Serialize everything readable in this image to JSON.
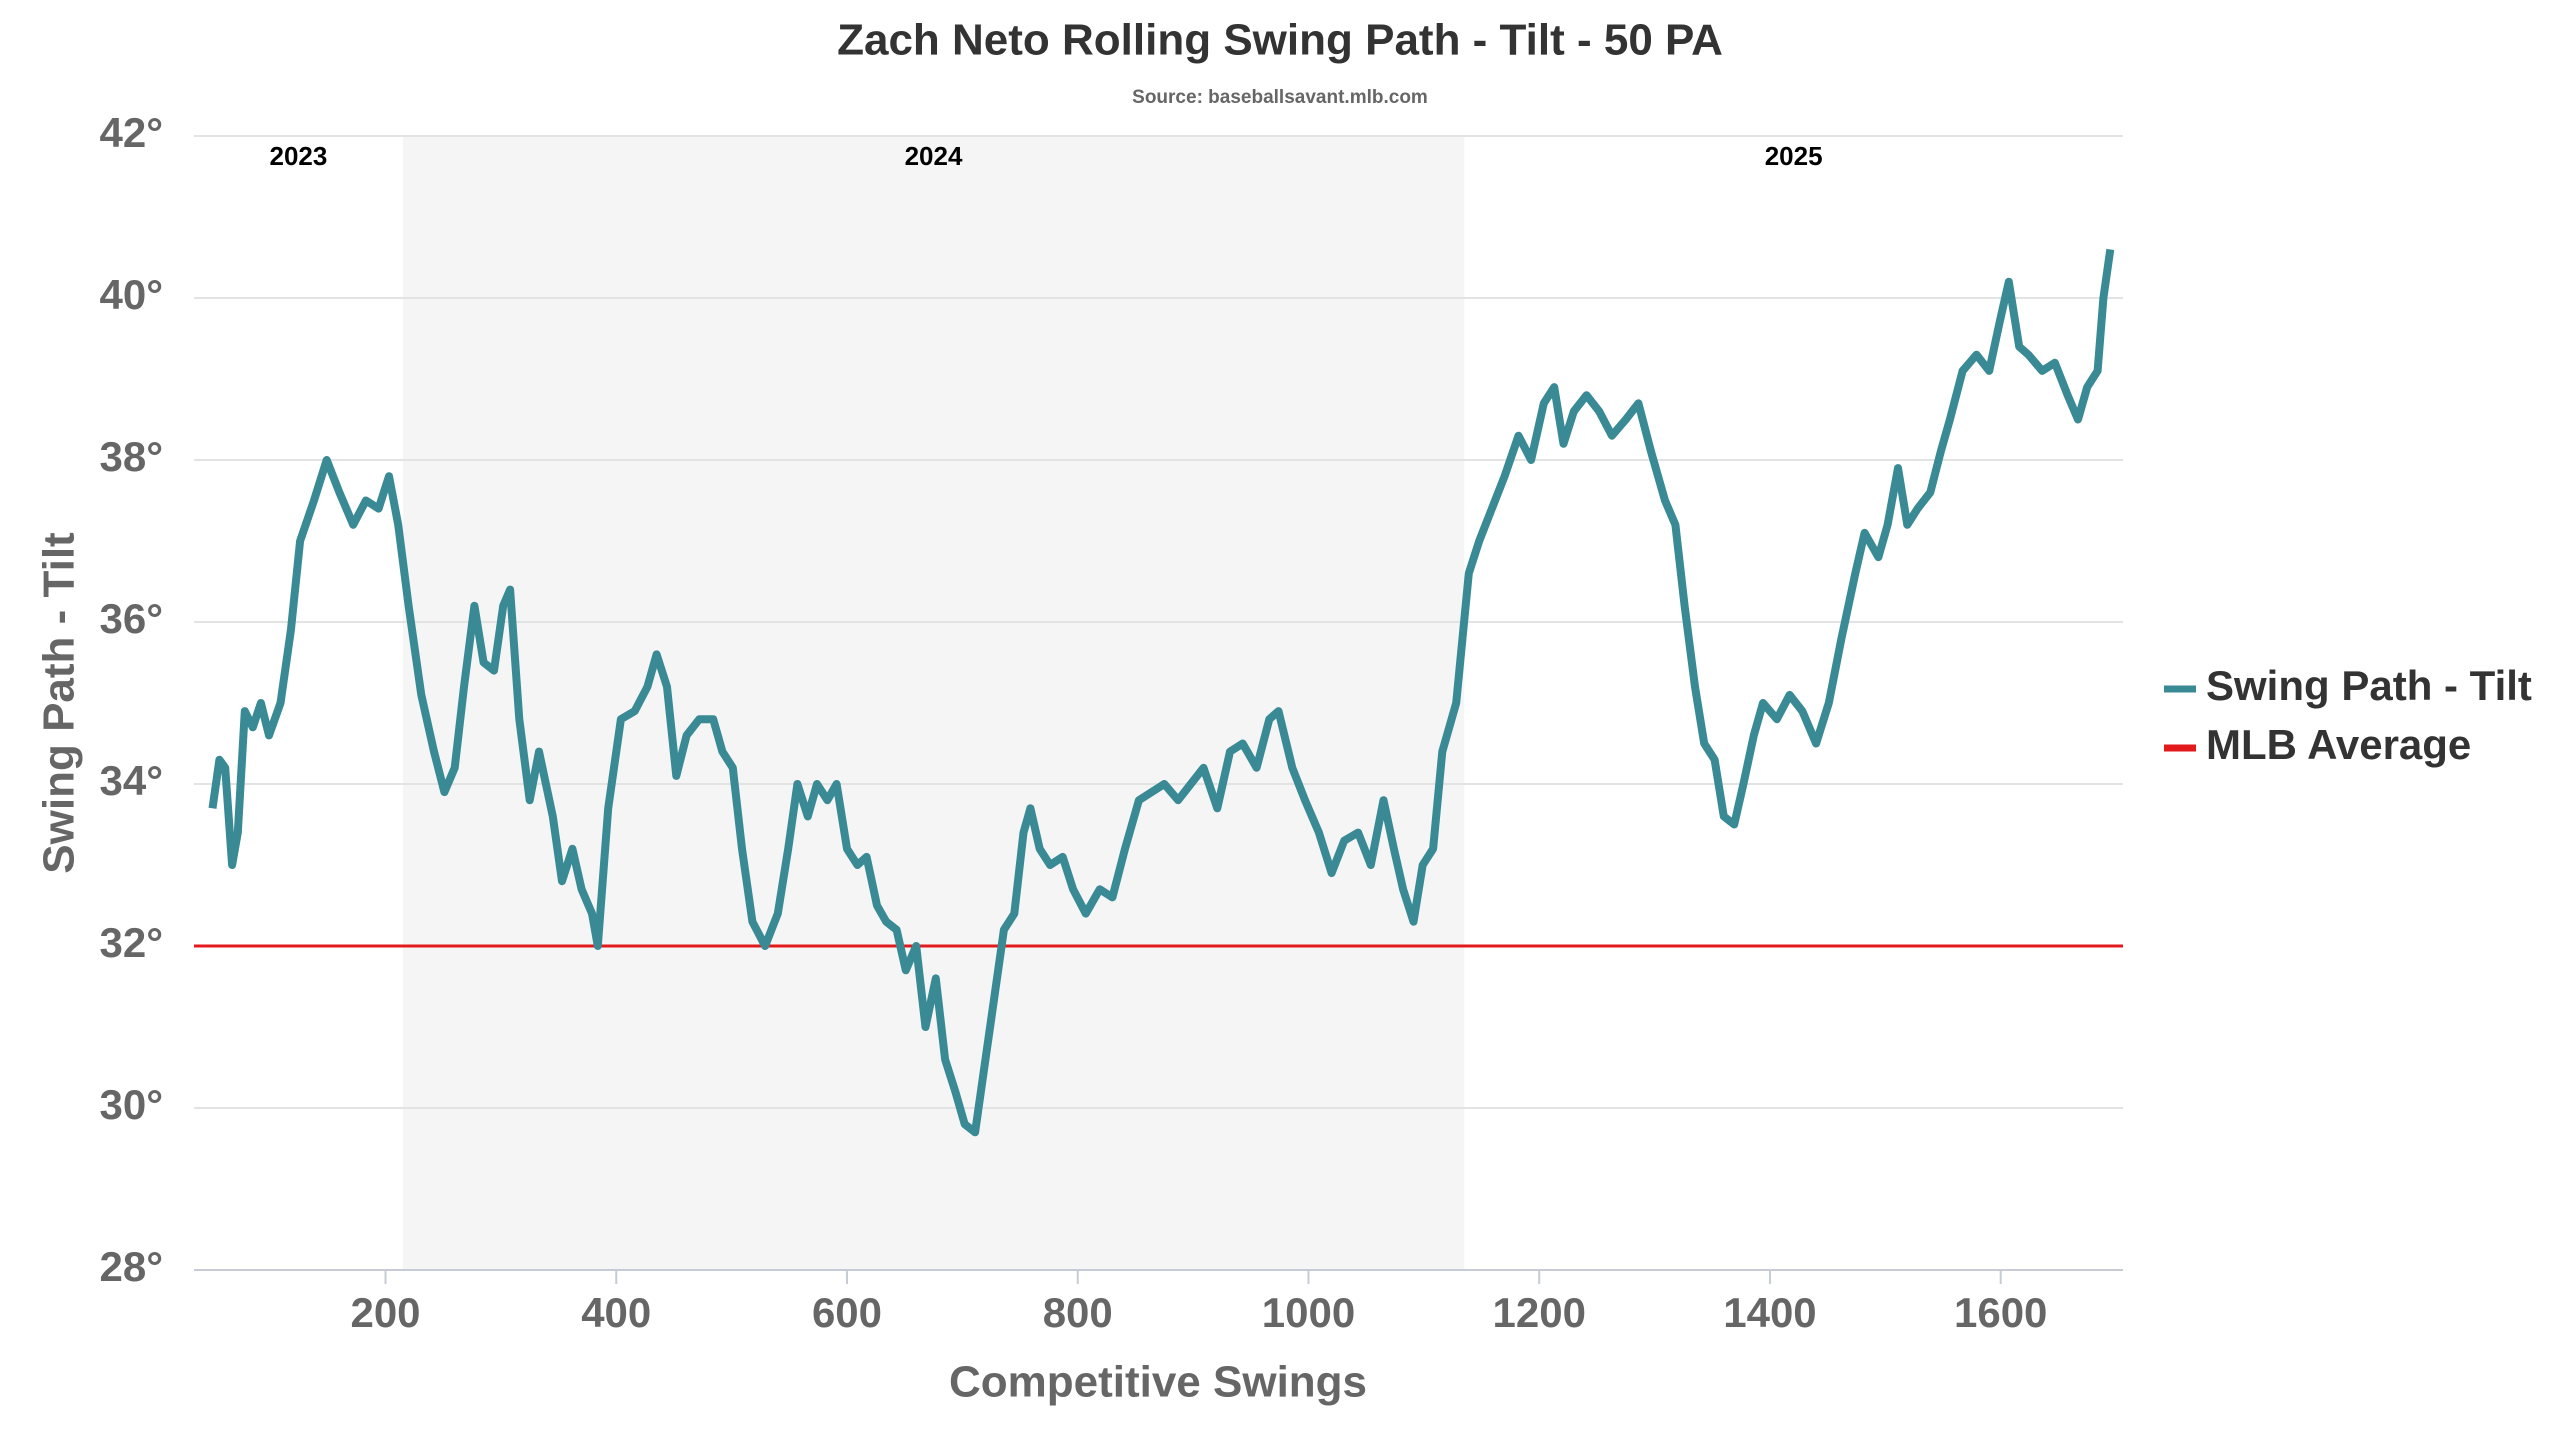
{
  "chart_data": {
    "type": "line",
    "title": "Zach Neto Rolling Swing Path - Tilt - 50 PA",
    "subtitle": "Source: baseballsavant.mlb.com",
    "x_label": "Competitive Swings",
    "y_label": "Swing Path - Tilt",
    "xlim": [
      34,
      1706
    ],
    "xticks": [
      200,
      400,
      600,
      800,
      1000,
      1200,
      1400,
      1600
    ],
    "ylim": [
      28,
      42
    ],
    "yticks": [
      {
        "value": 28,
        "label": "28°"
      },
      {
        "value": 30,
        "label": "30°"
      },
      {
        "value": 32,
        "label": "32°"
      },
      {
        "value": 34,
        "label": "34°"
      },
      {
        "value": 36,
        "label": "36°"
      },
      {
        "value": 38,
        "label": "38°"
      },
      {
        "value": 40,
        "label": "40°"
      },
      {
        "value": 42,
        "label": "42°"
      }
    ],
    "grid": true,
    "seasons": [
      "2023",
      "2024",
      "2025"
    ],
    "season_breaks": [
      215,
      1135
    ],
    "series": [
      {
        "name": "Swing Path - Tilt",
        "color": "#3a8a95",
        "x": [
          50,
          56,
          61,
          67,
          72,
          78,
          85,
          92,
          99,
          109,
          118,
          126,
          138,
          149,
          160,
          172,
          183,
          194,
          203,
          211,
          220,
          231,
          242,
          251,
          260,
          268,
          277,
          285,
          294,
          302,
          308,
          316,
          325,
          333,
          345,
          353,
          362,
          370,
          379,
          384,
          393,
          404,
          416,
          427,
          435,
          444,
          452,
          461,
          472,
          484,
          492,
          501,
          509,
          518,
          529,
          540,
          549,
          557,
          566,
          574,
          583,
          591,
          600,
          609,
          617,
          626,
          634,
          643,
          651,
          660,
          668,
          677,
          685,
          694,
          702,
          711,
          719,
          728,
          736,
          745,
          753,
          759,
          767,
          776,
          787,
          796,
          807,
          819,
          830,
          841,
          853,
          864,
          875,
          887,
          898,
          909,
          921,
          932,
          943,
          955,
          966,
          974,
          986,
          997,
          1009,
          1020,
          1031,
          1043,
          1054,
          1065,
          1074,
          1082,
          1091,
          1099,
          1108,
          1116,
          1128,
          1139,
          1148,
          1159,
          1170,
          1182,
          1193,
          1204,
          1213,
          1221,
          1230,
          1241,
          1252,
          1263,
          1275,
          1286,
          1297,
          1309,
          1318,
          1326,
          1335,
          1343,
          1352,
          1360,
          1369,
          1377,
          1386,
          1394,
          1406,
          1417,
          1428,
          1440,
          1451,
          1462,
          1474,
          1482,
          1494,
          1502,
          1511,
          1519,
          1528,
          1539,
          1548,
          1556,
          1567,
          1579,
          1590,
          1599,
          1607,
          1616,
          1624,
          1636,
          1647,
          1658,
          1667,
          1675,
          1684,
          1689,
          1695
        ],
        "values": [
          33.7,
          34.3,
          34.2,
          33.0,
          33.4,
          34.9,
          34.7,
          35.0,
          34.6,
          35.0,
          35.9,
          37.0,
          37.5,
          38.0,
          37.6,
          37.2,
          37.5,
          37.4,
          37.8,
          37.2,
          36.2,
          35.1,
          34.4,
          33.9,
          34.2,
          35.2,
          36.2,
          35.5,
          35.4,
          36.2,
          36.4,
          34.8,
          33.8,
          34.4,
          33.6,
          32.8,
          33.2,
          32.7,
          32.4,
          32.0,
          33.7,
          34.8,
          34.9,
          35.2,
          35.6,
          35.2,
          34.1,
          34.6,
          34.8,
          34.8,
          34.4,
          34.2,
          33.2,
          32.3,
          32.0,
          32.4,
          33.2,
          34.0,
          33.6,
          34.0,
          33.8,
          34.0,
          33.2,
          33.0,
          33.1,
          32.5,
          32.3,
          32.2,
          31.7,
          32.0,
          31.0,
          31.6,
          30.6,
          30.2,
          29.8,
          29.7,
          30.5,
          31.4,
          32.2,
          32.4,
          33.4,
          33.7,
          33.2,
          33.0,
          33.1,
          32.7,
          32.4,
          32.7,
          32.6,
          33.2,
          33.8,
          33.9,
          34.0,
          33.8,
          34.0,
          34.2,
          33.7,
          34.4,
          34.5,
          34.2,
          34.8,
          34.9,
          34.2,
          33.8,
          33.4,
          32.9,
          33.3,
          33.4,
          33.0,
          33.8,
          33.2,
          32.7,
          32.3,
          33.0,
          33.2,
          34.4,
          35.0,
          36.6,
          37.0,
          37.4,
          37.8,
          38.3,
          38.0,
          38.7,
          38.9,
          38.2,
          38.6,
          38.8,
          38.6,
          38.3,
          38.5,
          38.7,
          38.1,
          37.5,
          37.2,
          36.2,
          35.2,
          34.5,
          34.3,
          33.6,
          33.5,
          34.0,
          34.6,
          35.0,
          34.8,
          35.1,
          34.9,
          34.5,
          35.0,
          35.8,
          36.6,
          37.1,
          36.8,
          37.2,
          37.9,
          37.2,
          37.4,
          37.6,
          38.1,
          38.5,
          39.1,
          39.3,
          39.1,
          39.7,
          40.2,
          39.4,
          39.3,
          39.1,
          39.2,
          38.8,
          38.5,
          38.9,
          39.1,
          40.0,
          40.6
        ]
      }
    ],
    "reference_lines": [
      {
        "name": "MLB Average",
        "value": 32,
        "color": "#e31a1c"
      }
    ]
  }
}
